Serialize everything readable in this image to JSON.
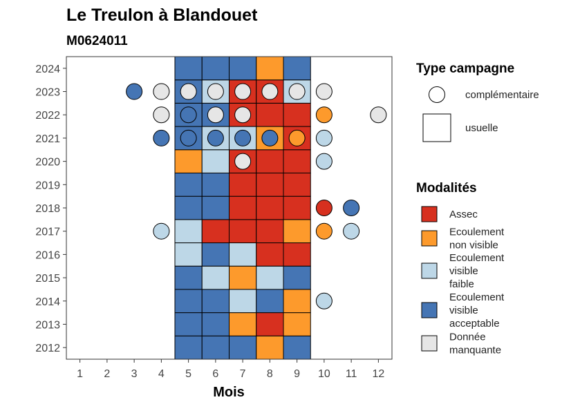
{
  "chart_data": {
    "type": "heatmap",
    "title": "Le Treulon à Blandouet",
    "subtitle": "M0624011",
    "xlabel": "Mois",
    "ylabel": "",
    "x_ticks": [
      1,
      2,
      3,
      4,
      5,
      6,
      7,
      8,
      9,
      10,
      11,
      12
    ],
    "y_ticks": [
      2012,
      2013,
      2014,
      2015,
      2016,
      2017,
      2018,
      2019,
      2020,
      2021,
      2022,
      2023,
      2024
    ],
    "xlim": [
      0.5,
      12.5
    ],
    "ylim": [
      2011.5,
      2024.5
    ],
    "grid": false,
    "colors": {
      "Assec": "#d7301f",
      "Ecoulement non visible": "#fd9a2c",
      "Ecoulement visible faible": "#bdd7e7",
      "Ecoulement visible acceptable": "#4575b4",
      "Donnée manquante": "#e6e6e6"
    },
    "legend_type": {
      "title": "Type campagne",
      "entries": [
        {
          "key": "complementaire",
          "label": "complémentaire",
          "shape": "circle"
        },
        {
          "key": "usuelle",
          "label": "usuelle",
          "shape": "square"
        }
      ]
    },
    "legend_modalites": {
      "title": "Modalités",
      "entries": [
        {
          "key": "Assec",
          "lines": [
            "Assec"
          ]
        },
        {
          "key": "Ecoulement non visible",
          "lines": [
            "Ecoulement",
            "non visible"
          ]
        },
        {
          "key": "Ecoulement visible faible",
          "lines": [
            "Ecoulement",
            "visible",
            "faible"
          ]
        },
        {
          "key": "Ecoulement visible acceptable",
          "lines": [
            "Ecoulement",
            "visible",
            "acceptable"
          ]
        },
        {
          "key": "Donnée manquante",
          "lines": [
            "Donnée",
            "manquante"
          ]
        }
      ]
    },
    "usuelle": [
      {
        "year": 2012,
        "month": 5,
        "modalite": "Ecoulement visible acceptable"
      },
      {
        "year": 2012,
        "month": 6,
        "modalite": "Ecoulement visible acceptable"
      },
      {
        "year": 2012,
        "month": 7,
        "modalite": "Ecoulement visible acceptable"
      },
      {
        "year": 2012,
        "month": 8,
        "modalite": "Ecoulement non visible"
      },
      {
        "year": 2012,
        "month": 9,
        "modalite": "Ecoulement visible acceptable"
      },
      {
        "year": 2013,
        "month": 5,
        "modalite": "Ecoulement visible acceptable"
      },
      {
        "year": 2013,
        "month": 6,
        "modalite": "Ecoulement visible acceptable"
      },
      {
        "year": 2013,
        "month": 7,
        "modalite": "Ecoulement non visible"
      },
      {
        "year": 2013,
        "month": 8,
        "modalite": "Assec"
      },
      {
        "year": 2013,
        "month": 9,
        "modalite": "Ecoulement non visible"
      },
      {
        "year": 2014,
        "month": 5,
        "modalite": "Ecoulement visible acceptable"
      },
      {
        "year": 2014,
        "month": 6,
        "modalite": "Ecoulement visible acceptable"
      },
      {
        "year": 2014,
        "month": 7,
        "modalite": "Ecoulement visible faible"
      },
      {
        "year": 2014,
        "month": 8,
        "modalite": "Ecoulement visible acceptable"
      },
      {
        "year": 2014,
        "month": 9,
        "modalite": "Ecoulement non visible"
      },
      {
        "year": 2015,
        "month": 5,
        "modalite": "Ecoulement visible acceptable"
      },
      {
        "year": 2015,
        "month": 6,
        "modalite": "Ecoulement visible faible"
      },
      {
        "year": 2015,
        "month": 7,
        "modalite": "Ecoulement non visible"
      },
      {
        "year": 2015,
        "month": 8,
        "modalite": "Ecoulement visible faible"
      },
      {
        "year": 2015,
        "month": 9,
        "modalite": "Ecoulement visible acceptable"
      },
      {
        "year": 2016,
        "month": 5,
        "modalite": "Ecoulement visible faible"
      },
      {
        "year": 2016,
        "month": 6,
        "modalite": "Ecoulement visible acceptable"
      },
      {
        "year": 2016,
        "month": 7,
        "modalite": "Ecoulement visible faible"
      },
      {
        "year": 2016,
        "month": 8,
        "modalite": "Assec"
      },
      {
        "year": 2016,
        "month": 9,
        "modalite": "Assec"
      },
      {
        "year": 2017,
        "month": 5,
        "modalite": "Ecoulement visible faible"
      },
      {
        "year": 2017,
        "month": 6,
        "modalite": "Assec"
      },
      {
        "year": 2017,
        "month": 7,
        "modalite": "Assec"
      },
      {
        "year": 2017,
        "month": 8,
        "modalite": "Assec"
      },
      {
        "year": 2017,
        "month": 9,
        "modalite": "Ecoulement non visible"
      },
      {
        "year": 2018,
        "month": 5,
        "modalite": "Ecoulement visible acceptable"
      },
      {
        "year": 2018,
        "month": 6,
        "modalite": "Ecoulement visible acceptable"
      },
      {
        "year": 2018,
        "month": 7,
        "modalite": "Assec"
      },
      {
        "year": 2018,
        "month": 8,
        "modalite": "Assec"
      },
      {
        "year": 2018,
        "month": 9,
        "modalite": "Assec"
      },
      {
        "year": 2019,
        "month": 5,
        "modalite": "Ecoulement visible acceptable"
      },
      {
        "year": 2019,
        "month": 6,
        "modalite": "Ecoulement visible acceptable"
      },
      {
        "year": 2019,
        "month": 7,
        "modalite": "Assec"
      },
      {
        "year": 2019,
        "month": 8,
        "modalite": "Assec"
      },
      {
        "year": 2019,
        "month": 9,
        "modalite": "Assec"
      },
      {
        "year": 2020,
        "month": 5,
        "modalite": "Ecoulement non visible"
      },
      {
        "year": 2020,
        "month": 6,
        "modalite": "Ecoulement visible faible"
      },
      {
        "year": 2020,
        "month": 7,
        "modalite": "Assec"
      },
      {
        "year": 2020,
        "month": 8,
        "modalite": "Assec"
      },
      {
        "year": 2020,
        "month": 9,
        "modalite": "Assec"
      },
      {
        "year": 2021,
        "month": 5,
        "modalite": "Ecoulement visible acceptable"
      },
      {
        "year": 2021,
        "month": 6,
        "modalite": "Ecoulement visible faible"
      },
      {
        "year": 2021,
        "month": 7,
        "modalite": "Ecoulement visible faible"
      },
      {
        "year": 2021,
        "month": 8,
        "modalite": "Ecoulement non visible"
      },
      {
        "year": 2021,
        "month": 9,
        "modalite": "Assec"
      },
      {
        "year": 2022,
        "month": 5,
        "modalite": "Ecoulement visible acceptable"
      },
      {
        "year": 2022,
        "month": 6,
        "modalite": "Ecoulement visible acceptable"
      },
      {
        "year": 2022,
        "month": 7,
        "modalite": "Assec"
      },
      {
        "year": 2022,
        "month": 8,
        "modalite": "Assec"
      },
      {
        "year": 2022,
        "month": 9,
        "modalite": "Assec"
      },
      {
        "year": 2023,
        "month": 5,
        "modalite": "Ecoulement visible acceptable"
      },
      {
        "year": 2023,
        "month": 6,
        "modalite": "Ecoulement visible faible"
      },
      {
        "year": 2023,
        "month": 7,
        "modalite": "Assec"
      },
      {
        "year": 2023,
        "month": 8,
        "modalite": "Assec"
      },
      {
        "year": 2023,
        "month": 9,
        "modalite": "Ecoulement visible faible"
      },
      {
        "year": 2024,
        "month": 5,
        "modalite": "Ecoulement visible acceptable"
      },
      {
        "year": 2024,
        "month": 6,
        "modalite": "Ecoulement visible acceptable"
      },
      {
        "year": 2024,
        "month": 7,
        "modalite": "Ecoulement visible acceptable"
      },
      {
        "year": 2024,
        "month": 8,
        "modalite": "Ecoulement non visible"
      },
      {
        "year": 2024,
        "month": 9,
        "modalite": "Ecoulement visible acceptable"
      }
    ],
    "complementaire": [
      {
        "year": 2014,
        "month": 10,
        "modalite": "Ecoulement visible faible"
      },
      {
        "year": 2017,
        "month": 4,
        "modalite": "Ecoulement visible faible"
      },
      {
        "year": 2017,
        "month": 10,
        "modalite": "Ecoulement non visible"
      },
      {
        "year": 2017,
        "month": 11,
        "modalite": "Ecoulement visible faible"
      },
      {
        "year": 2018,
        "month": 10,
        "modalite": "Assec"
      },
      {
        "year": 2018,
        "month": 11,
        "modalite": "Ecoulement visible acceptable"
      },
      {
        "year": 2020,
        "month": 7,
        "modalite": "Donnée manquante"
      },
      {
        "year": 2020,
        "month": 10,
        "modalite": "Ecoulement visible faible"
      },
      {
        "year": 2021,
        "month": 4,
        "modalite": "Ecoulement visible acceptable"
      },
      {
        "year": 2021,
        "month": 5,
        "modalite": "Ecoulement visible acceptable"
      },
      {
        "year": 2021,
        "month": 6,
        "modalite": "Ecoulement visible acceptable"
      },
      {
        "year": 2021,
        "month": 7,
        "modalite": "Ecoulement visible acceptable"
      },
      {
        "year": 2021,
        "month": 8,
        "modalite": "Ecoulement visible acceptable"
      },
      {
        "year": 2021,
        "month": 9,
        "modalite": "Ecoulement non visible"
      },
      {
        "year": 2021,
        "month": 10,
        "modalite": "Ecoulement visible faible"
      },
      {
        "year": 2022,
        "month": 4,
        "modalite": "Donnée manquante"
      },
      {
        "year": 2022,
        "month": 5,
        "modalite": "Ecoulement visible acceptable"
      },
      {
        "year": 2022,
        "month": 6,
        "modalite": "Donnée manquante"
      },
      {
        "year": 2022,
        "month": 7,
        "modalite": "Donnée manquante"
      },
      {
        "year": 2022,
        "month": 10,
        "modalite": "Ecoulement non visible"
      },
      {
        "year": 2022,
        "month": 12,
        "modalite": "Donnée manquante"
      },
      {
        "year": 2023,
        "month": 3,
        "modalite": "Ecoulement visible acceptable"
      },
      {
        "year": 2023,
        "month": 4,
        "modalite": "Donnée manquante"
      },
      {
        "year": 2023,
        "month": 5,
        "modalite": "Donnée manquante"
      },
      {
        "year": 2023,
        "month": 6,
        "modalite": "Donnée manquante"
      },
      {
        "year": 2023,
        "month": 7,
        "modalite": "Donnée manquante"
      },
      {
        "year": 2023,
        "month": 8,
        "modalite": "Donnée manquante"
      },
      {
        "year": 2023,
        "month": 9,
        "modalite": "Donnée manquante"
      },
      {
        "year": 2023,
        "month": 10,
        "modalite": "Donnée manquante"
      }
    ]
  }
}
